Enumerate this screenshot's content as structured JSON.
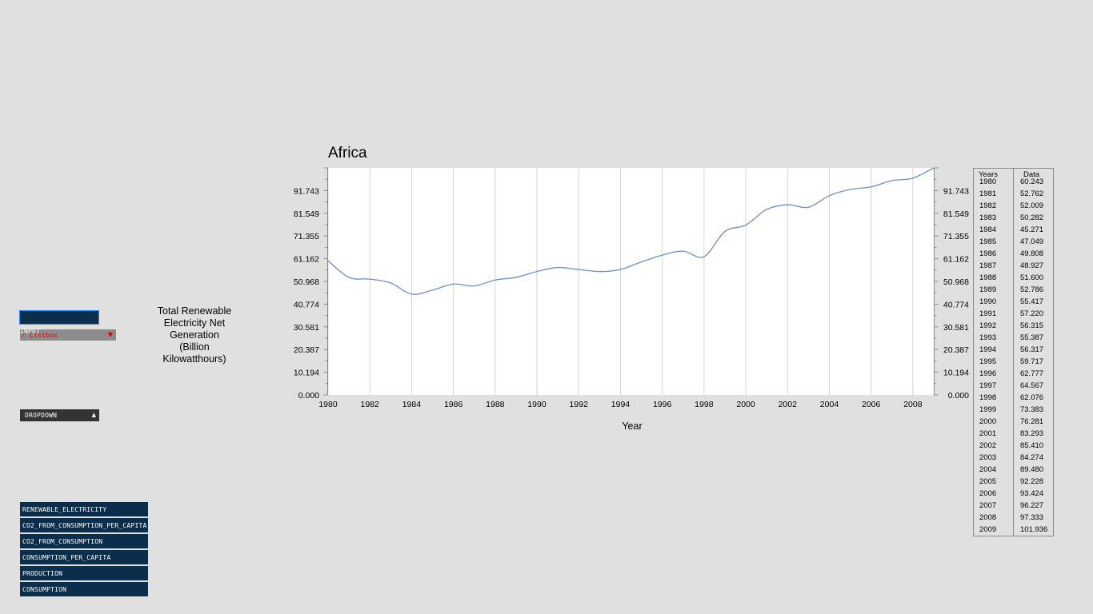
{
  "controls": {
    "input_label": "INPUT",
    "listbox_label": "r Listbox",
    "listbox_arrow": "▼",
    "dropdown_label": "DROPDOWN",
    "dropdown_arrow": "▲"
  },
  "datasets": [
    {
      "label": "RENEWABLE_ELECTRICITY"
    },
    {
      "label": "CO2_FROM_CONSUMPTION_PER_CAPITA"
    },
    {
      "label": "CO2_FROM_CONSUMPTION"
    },
    {
      "label": "CONSUMPTION_PER_CAPITA"
    },
    {
      "label": "PRODUCTION"
    },
    {
      "label": "CONSUMPTION"
    }
  ],
  "colors": {
    "background": "#e0e0e0",
    "button_bg": "#0a2e4c",
    "line": "#6b8fc7",
    "grid": "#d4d4d4"
  },
  "ylabel_lines": [
    "Total Renewable",
    "Electricity Net",
    "Generation",
    "(Billion",
    "Kilowatthours)"
  ],
  "chart_data": {
    "type": "line",
    "title": "Africa",
    "xlabel": "Year",
    "ylabel": "Total Renewable Electricity Net Generation (Billion Kilowatthours)",
    "x": [
      1980,
      1981,
      1982,
      1983,
      1984,
      1985,
      1986,
      1987,
      1988,
      1989,
      1990,
      1991,
      1992,
      1993,
      1994,
      1995,
      1996,
      1997,
      1998,
      1999,
      2000,
      2001,
      2002,
      2003,
      2004,
      2005,
      2006,
      2007,
      2008,
      2009
    ],
    "series": [
      {
        "values": [
          60.243,
          52.762,
          52.009,
          50.282,
          45.271,
          47.049,
          49.808,
          48.927,
          51.6,
          52.786,
          55.417,
          57.22,
          56.315,
          55.387,
          56.317,
          59.717,
          62.777,
          64.567,
          62.076,
          73.383,
          76.281,
          83.293,
          85.41,
          84.274,
          89.48,
          92.228,
          93.424,
          96.227,
          97.333,
          101.936
        ]
      }
    ],
    "xlim": [
      1980,
      2009
    ],
    "ylim": [
      0,
      101.936
    ],
    "x_ticks": [
      "1980",
      "1982",
      "1984",
      "1986",
      "1988",
      "1990",
      "1992",
      "1994",
      "1996",
      "1998",
      "2000",
      "2002",
      "2004",
      "2006",
      "2008"
    ],
    "y_ticks": [
      "0.000",
      "10.194",
      "20.387",
      "30.581",
      "40.774",
      "50.968",
      "61.162",
      "71.355",
      "81.549",
      "91.743"
    ],
    "grid": "vertical",
    "right_axis": true
  },
  "table": {
    "headers": {
      "years": "Years",
      "data": "Data"
    },
    "rows": [
      {
        "year": "1980",
        "value": "60.243"
      },
      {
        "year": "1981",
        "value": "52.762"
      },
      {
        "year": "1982",
        "value": "52.009"
      },
      {
        "year": "1983",
        "value": "50.282"
      },
      {
        "year": "1984",
        "value": "45.271"
      },
      {
        "year": "1985",
        "value": "47.049"
      },
      {
        "year": "1986",
        "value": "49.808"
      },
      {
        "year": "1987",
        "value": "48.927"
      },
      {
        "year": "1988",
        "value": "51.600"
      },
      {
        "year": "1989",
        "value": "52.786"
      },
      {
        "year": "1990",
        "value": "55.417"
      },
      {
        "year": "1991",
        "value": "57.220"
      },
      {
        "year": "1992",
        "value": "56.315"
      },
      {
        "year": "1993",
        "value": "55.387"
      },
      {
        "year": "1994",
        "value": "56.317"
      },
      {
        "year": "1995",
        "value": "59.717"
      },
      {
        "year": "1996",
        "value": "62.777"
      },
      {
        "year": "1997",
        "value": "64.567"
      },
      {
        "year": "1998",
        "value": "62.076"
      },
      {
        "year": "1999",
        "value": "73.383"
      },
      {
        "year": "2000",
        "value": "76.281"
      },
      {
        "year": "2001",
        "value": "83.293"
      },
      {
        "year": "2002",
        "value": "85.410"
      },
      {
        "year": "2003",
        "value": "84.274"
      },
      {
        "year": "2004",
        "value": "89.480"
      },
      {
        "year": "2005",
        "value": "92.228"
      },
      {
        "year": "2006",
        "value": "93.424"
      },
      {
        "year": "2007",
        "value": "96.227"
      },
      {
        "year": "2008",
        "value": "97.333"
      },
      {
        "year": "2009",
        "value": "101.936"
      }
    ]
  }
}
